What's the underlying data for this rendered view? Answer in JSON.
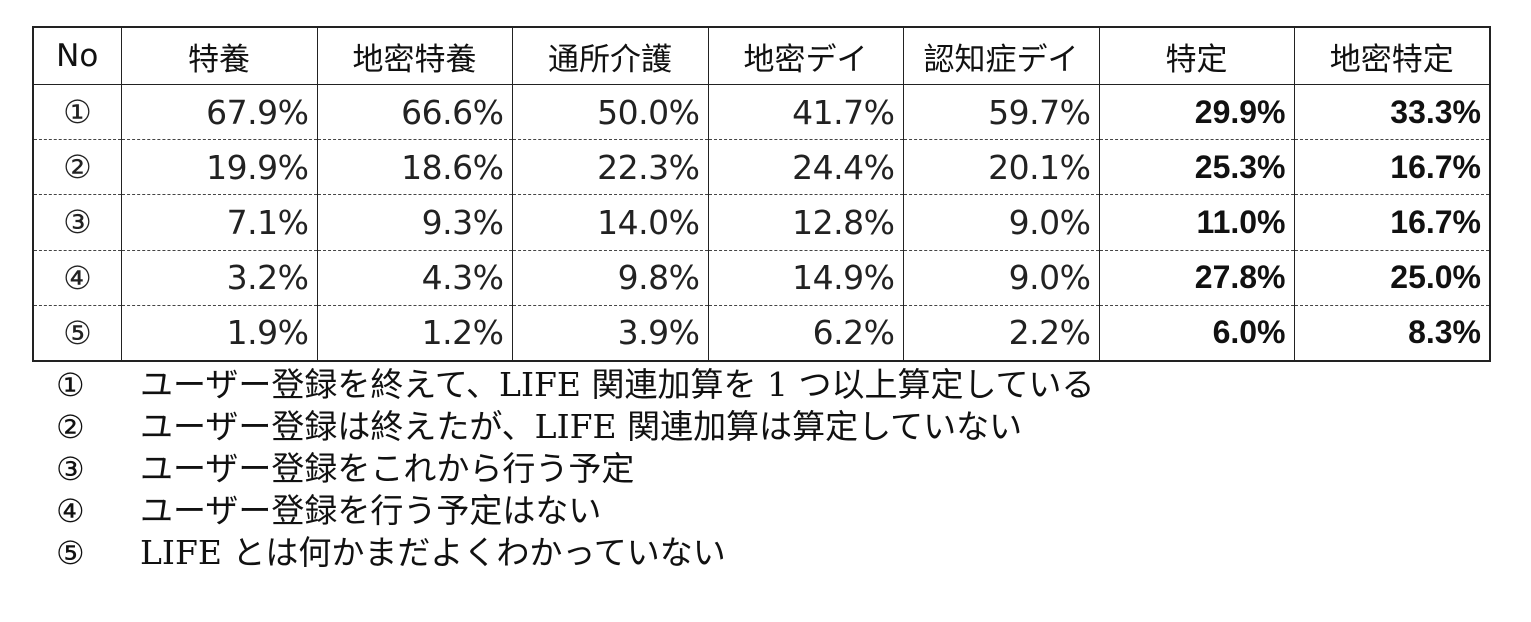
{
  "chart_data": {
    "type": "table",
    "columns": [
      "No",
      "特養",
      "地密特養",
      "通所介護",
      "地密デイ",
      "認知症デイ",
      "特定",
      "地密特定"
    ],
    "rows": [
      {
        "no": "①",
        "values": [
          "67.9%",
          "66.6%",
          "50.0%",
          "41.7%",
          "59.7%",
          "29.9%",
          "33.3%"
        ]
      },
      {
        "no": "②",
        "values": [
          "19.9%",
          "18.6%",
          "22.3%",
          "24.4%",
          "20.1%",
          "25.3%",
          "16.7%"
        ]
      },
      {
        "no": "③",
        "values": [
          "7.1%",
          "9.3%",
          "14.0%",
          "12.8%",
          "9.0%",
          "11.0%",
          "16.7%"
        ]
      },
      {
        "no": "④",
        "values": [
          "3.2%",
          "4.3%",
          "9.8%",
          "14.9%",
          "9.0%",
          "27.8%",
          "25.0%"
        ]
      },
      {
        "no": "⑤",
        "values": [
          "1.9%",
          "1.2%",
          "3.9%",
          "6.2%",
          "2.2%",
          "6.0%",
          "8.3%"
        ]
      }
    ],
    "legend": [
      {
        "mark": "①",
        "text": "ユーザー登録を終えて、LIFE 関連加算を 1 つ以上算定している"
      },
      {
        "mark": "②",
        "text": "ユーザー登録は終えたが、LIFE 関連加算は算定していない"
      },
      {
        "mark": "③",
        "text": "ユーザー登録をこれから行う予定"
      },
      {
        "mark": "④",
        "text": "ユーザー登録を行う予定はない"
      },
      {
        "mark": "⑤",
        "text": "LIFE とは何かまだよくわかっていない"
      }
    ]
  }
}
